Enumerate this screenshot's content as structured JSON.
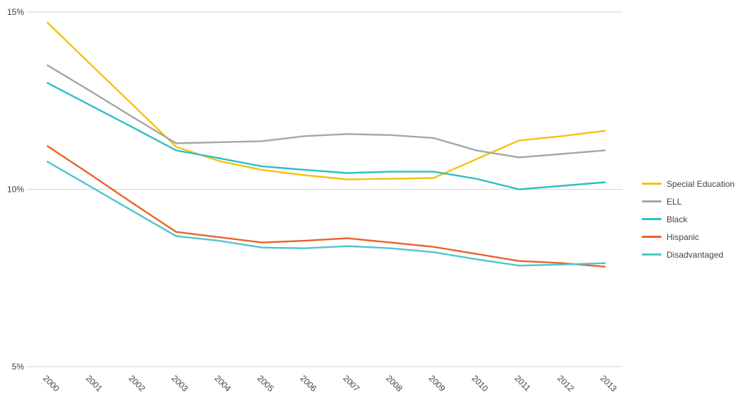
{
  "chart_data": {
    "type": "line",
    "title": "",
    "xlabel": "",
    "ylabel": "",
    "x_labels": [
      "2000",
      "2001",
      "2002",
      "2003",
      "2004",
      "2005",
      "2006",
      "2007",
      "2008",
      "2009",
      "2010",
      "2011",
      "2012",
      "2013"
    ],
    "ylim": [
      5,
      15
    ],
    "yticks": [
      {
        "value": 15,
        "label": "15%"
      },
      {
        "value": 10,
        "label": "10%"
      },
      {
        "value": 5,
        "label": "5%"
      }
    ],
    "grid": "horizontal",
    "legend_position": "right",
    "series": [
      {
        "name": "Special Education",
        "color": "#F5C211",
        "values": [
          14.7,
          13.53,
          12.37,
          11.2,
          10.8,
          10.55,
          10.4,
          10.28,
          10.3,
          10.32,
          10.85,
          11.38,
          11.5,
          11.65
        ]
      },
      {
        "name": "ELL",
        "color": "#A6A6A6",
        "values": [
          13.5,
          12.77,
          12.03,
          11.3,
          11.33,
          11.36,
          11.5,
          11.56,
          11.53,
          11.45,
          11.1,
          10.9,
          11.0,
          11.1
        ]
      },
      {
        "name": "Black",
        "color": "#2FBEC7",
        "values": [
          13.0,
          12.37,
          11.74,
          11.1,
          10.88,
          10.65,
          10.55,
          10.46,
          10.5,
          10.5,
          10.3,
          10.0,
          10.1,
          10.2
        ]
      },
      {
        "name": "Hispanic",
        "color": "#E8632B",
        "values": [
          11.22,
          10.42,
          9.6,
          8.8,
          8.65,
          8.5,
          8.55,
          8.62,
          8.5,
          8.38,
          8.18,
          7.98,
          7.92,
          7.82
        ]
      },
      {
        "name": "Disadvantaged",
        "color": "#4FC6CC",
        "values": [
          10.78,
          10.08,
          9.38,
          8.68,
          8.55,
          8.36,
          8.34,
          8.4,
          8.34,
          8.23,
          8.03,
          7.85,
          7.88,
          7.92
        ]
      }
    ],
    "colors": {
      "gridline": "#D6D6D6",
      "tick_text": "#404040"
    }
  }
}
